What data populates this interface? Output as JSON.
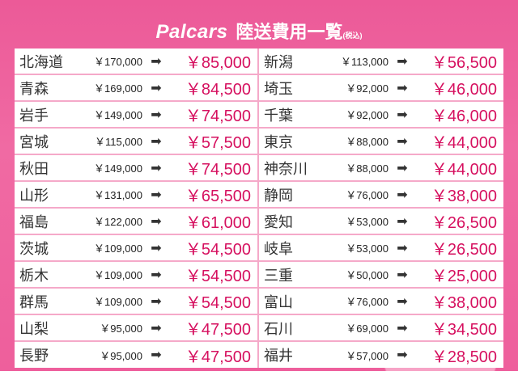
{
  "header": {
    "logo": "Palcars",
    "title": "陸送費用一覧",
    "tax_note": "(税込)"
  },
  "colors": {
    "accent": "#d6105f",
    "background": "#ee5f9c"
  },
  "arrow_icon": "➡",
  "left": [
    {
      "pref": "北海道",
      "original": "￥170,000",
      "price": "￥85,000"
    },
    {
      "pref": "青森",
      "original": "￥169,000",
      "price": "￥84,500"
    },
    {
      "pref": "岩手",
      "original": "￥149,000",
      "price": "￥74,500"
    },
    {
      "pref": "宮城",
      "original": "￥115,000",
      "price": "￥57,500"
    },
    {
      "pref": "秋田",
      "original": "￥149,000",
      "price": "￥74,500"
    },
    {
      "pref": "山形",
      "original": "￥131,000",
      "price": "￥65,500"
    },
    {
      "pref": "福島",
      "original": "￥122,000",
      "price": "￥61,000"
    },
    {
      "pref": "茨城",
      "original": "￥109,000",
      "price": "￥54,500"
    },
    {
      "pref": "栃木",
      "original": "￥109,000",
      "price": "￥54,500"
    },
    {
      "pref": "群馬",
      "original": "￥109,000",
      "price": "￥54,500"
    },
    {
      "pref": "山梨",
      "original": "￥95,000",
      "price": "￥47,500"
    },
    {
      "pref": "長野",
      "original": "￥95,000",
      "price": "￥47,500"
    }
  ],
  "right": [
    {
      "pref": "新潟",
      "original": "￥113,000",
      "price": "￥56,500"
    },
    {
      "pref": "埼玉",
      "original": "￥92,000",
      "price": "￥46,000"
    },
    {
      "pref": "千葉",
      "original": "￥92,000",
      "price": "￥46,000"
    },
    {
      "pref": "東京",
      "original": "￥88,000",
      "price": "￥44,000"
    },
    {
      "pref": "神奈川",
      "original": "￥88,000",
      "price": "￥44,000"
    },
    {
      "pref": "静岡",
      "original": "￥76,000",
      "price": "￥38,000"
    },
    {
      "pref": "愛知",
      "original": "￥53,000",
      "price": "￥26,500"
    },
    {
      "pref": "岐阜",
      "original": "￥53,000",
      "price": "￥26,500"
    },
    {
      "pref": "三重",
      "original": "￥50,000",
      "price": "￥25,000"
    },
    {
      "pref": "富山",
      "original": "￥76,000",
      "price": "￥38,000"
    },
    {
      "pref": "石川",
      "original": "￥69,000",
      "price": "￥34,500"
    },
    {
      "pref": "福井",
      "original": "￥57,000",
      "price": "￥28,500"
    }
  ]
}
